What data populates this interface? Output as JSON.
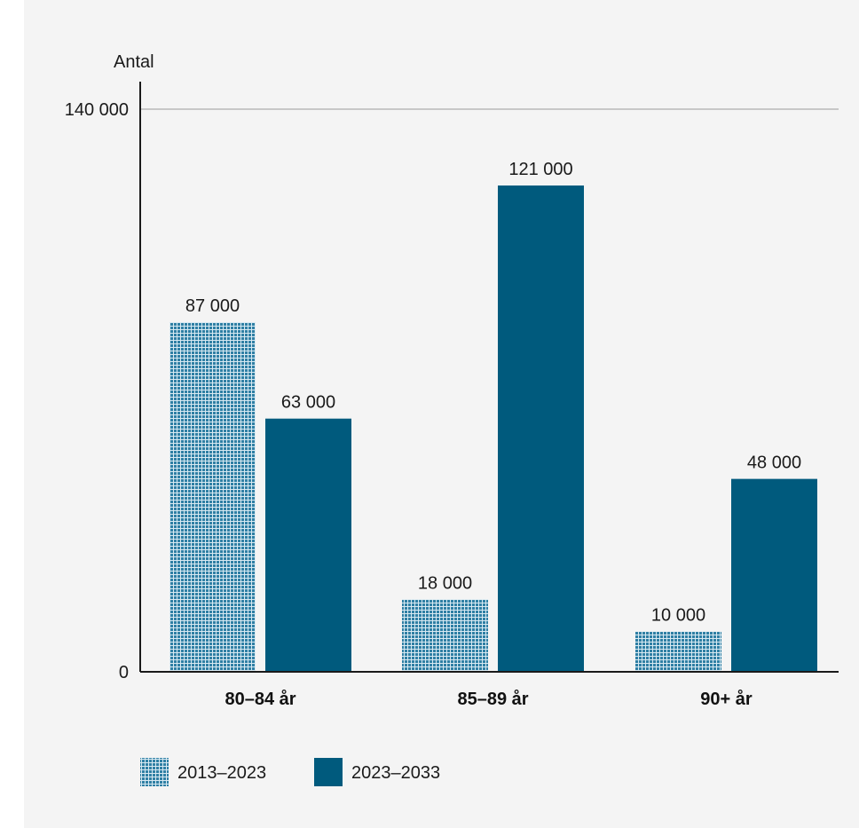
{
  "chart_data": {
    "type": "bar",
    "ylabel": "Antal",
    "ylim": [
      0,
      140000
    ],
    "yticks": [
      {
        "value": 0,
        "label": "0"
      },
      {
        "value": 140000,
        "label": "140 000"
      }
    ],
    "categories": [
      "80–84 år",
      "85–89 år",
      "90+ år"
    ],
    "series": [
      {
        "name": "2013–2023",
        "values": [
          87000,
          18000,
          10000
        ],
        "labels": [
          "87 000",
          "18 000",
          "10 000"
        ],
        "color": "#2f7fa4",
        "pattern": "dotted-grid"
      },
      {
        "name": "2023–2033",
        "values": [
          63000,
          121000,
          48000
        ],
        "labels": [
          "63 000",
          "121 000",
          "48 000"
        ],
        "color": "#005a7d",
        "pattern": "solid"
      }
    ],
    "grid": "top-line-only",
    "legend": "bottom-left"
  }
}
